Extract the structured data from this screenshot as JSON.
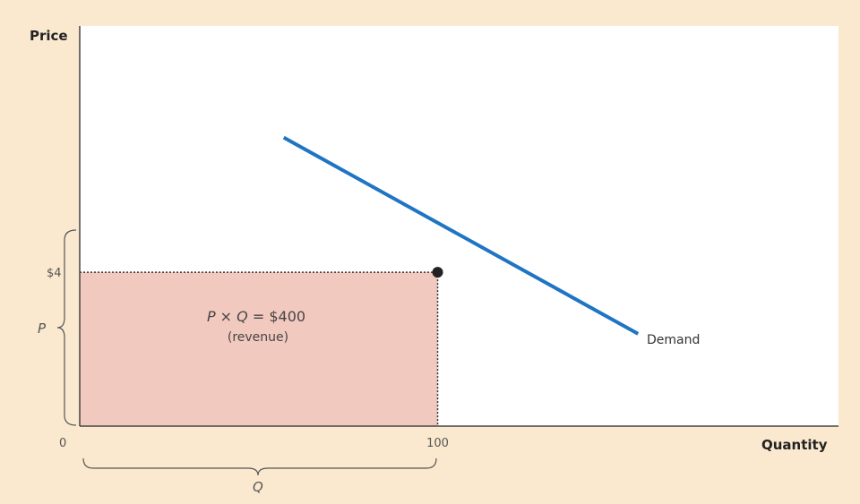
{
  "colors": {
    "background": "#fae9cf",
    "plot_area": "#ffffff",
    "revenue_fill": "#f2c9bf",
    "demand_line": "#1f74c4",
    "dotted": "#333333"
  },
  "chart_data": {
    "type": "line",
    "title": "",
    "xlabel": "Quantity",
    "ylabel": "Price",
    "xlim": [
      0,
      212
    ],
    "ylim": [
      0,
      10.4
    ],
    "series": [
      {
        "name": "Demand",
        "x": [
          57,
          156
        ],
        "y": [
          7.5,
          2.4
        ]
      }
    ],
    "highlight_point": {
      "x": 100,
      "y": 4
    },
    "shaded_region": {
      "x": [
        0,
        100
      ],
      "y": [
        0,
        4
      ]
    },
    "tick_labels": {
      "origin": "0",
      "x_value": "100",
      "y_value": "$4"
    },
    "annotations": {
      "revenue_line1_p": "P",
      "revenue_line1_times": " × ",
      "revenue_line1_q": "Q",
      "revenue_line1_rest": " = $400",
      "revenue_line2": "(revenue)",
      "brace_p": "P",
      "brace_q": "Q",
      "demand_label": "Demand"
    }
  }
}
